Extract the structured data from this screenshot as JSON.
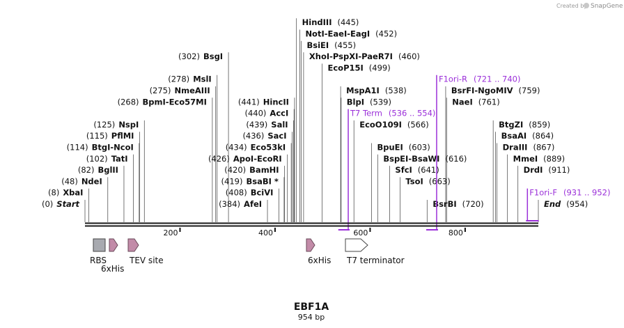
{
  "credit": {
    "prefix": "Created by",
    "brand": "SnapGene"
  },
  "plasmid": {
    "name": "EBF1A",
    "length_label": "954 bp",
    "length": 954
  },
  "ticks": [
    {
      "value": 200,
      "label": "200"
    },
    {
      "value": 400,
      "label": "400"
    },
    {
      "value": 600,
      "label": "600"
    },
    {
      "value": 800,
      "label": "800"
    }
  ],
  "sites": [
    {
      "row": 0,
      "site": 0,
      "parts": [
        {
          "t": "(0)",
          "k": "pos"
        },
        {
          "t": "Start",
          "k": "start"
        }
      ]
    },
    {
      "row": 1,
      "site": 8,
      "parts": [
        {
          "t": "(8)",
          "k": "pos"
        },
        {
          "t": "XbaI",
          "k": "enz"
        }
      ]
    },
    {
      "row": 2,
      "site": 48,
      "parts": [
        {
          "t": "(48)",
          "k": "pos"
        },
        {
          "t": "NdeI",
          "k": "enz"
        }
      ]
    },
    {
      "row": 3,
      "site": 82,
      "parts": [
        {
          "t": "(82)",
          "k": "pos"
        },
        {
          "t": "BglII",
          "k": "enz"
        }
      ]
    },
    {
      "row": 4,
      "site": 102,
      "parts": [
        {
          "t": "(102)",
          "k": "pos"
        },
        {
          "t": "TatI",
          "k": "enz"
        }
      ]
    },
    {
      "row": 5,
      "site": 114,
      "parts": [
        {
          "t": "(114)",
          "k": "pos"
        },
        {
          "t": "BtgI",
          "k": "enz"
        },
        {
          "t": " - ",
          "k": "sep"
        },
        {
          "t": "NcoI",
          "k": "enz"
        }
      ]
    },
    {
      "row": 6,
      "site": 115,
      "parts": [
        {
          "t": "(115)",
          "k": "pos"
        },
        {
          "t": "PflMI",
          "k": "enz"
        }
      ]
    },
    {
      "row": 7,
      "site": 125,
      "parts": [
        {
          "t": "(125)",
          "k": "pos"
        },
        {
          "t": "NspI",
          "k": "enz"
        }
      ]
    },
    {
      "row": 9,
      "site": 268,
      "parts": [
        {
          "t": "(268)",
          "k": "pos"
        },
        {
          "t": "BpmI",
          "k": "enz"
        },
        {
          "t": " - ",
          "k": "sep"
        },
        {
          "t": "Eco57MI",
          "k": "enz"
        }
      ]
    },
    {
      "row": 10,
      "site": 275,
      "parts": [
        {
          "t": "(275)",
          "k": "pos"
        },
        {
          "t": "NmeAIII",
          "k": "enz"
        }
      ]
    },
    {
      "row": 11,
      "site": 278,
      "parts": [
        {
          "t": "(278)",
          "k": "pos"
        },
        {
          "t": "MslI",
          "k": "enz"
        }
      ]
    },
    {
      "row": 13,
      "site": 302,
      "parts": [
        {
          "t": "(302)",
          "k": "pos"
        },
        {
          "t": "BsgI",
          "k": "enz"
        }
      ]
    },
    {
      "row": 0,
      "site": 384,
      "parts": [
        {
          "t": "(384)",
          "k": "pos"
        },
        {
          "t": "AfeI",
          "k": "enz"
        }
      ]
    },
    {
      "row": 1,
      "site": 408,
      "parts": [
        {
          "t": "(408)",
          "k": "pos"
        },
        {
          "t": "BciVI",
          "k": "enz"
        }
      ]
    },
    {
      "row": 2,
      "site": 419,
      "parts": [
        {
          "t": "(419)",
          "k": "pos"
        },
        {
          "t": "BsaBI *",
          "k": "enz"
        }
      ]
    },
    {
      "row": 3,
      "site": 420,
      "parts": [
        {
          "t": "(420)",
          "k": "pos"
        },
        {
          "t": "BamHI",
          "k": "enz"
        }
      ]
    },
    {
      "row": 4,
      "site": 426,
      "parts": [
        {
          "t": "(426)",
          "k": "pos"
        },
        {
          "t": "ApoI",
          "k": "enz"
        },
        {
          "t": " - ",
          "k": "sep"
        },
        {
          "t": "EcoRI",
          "k": "enz"
        }
      ]
    },
    {
      "row": 5,
      "site": 434,
      "parts": [
        {
          "t": "(434)",
          "k": "pos"
        },
        {
          "t": "Eco53kI",
          "k": "enz"
        }
      ]
    },
    {
      "row": 6,
      "site": 436,
      "parts": [
        {
          "t": "(436)",
          "k": "pos"
        },
        {
          "t": "SacI",
          "k": "enz"
        }
      ]
    },
    {
      "row": 7,
      "site": 439,
      "parts": [
        {
          "t": "(439)",
          "k": "pos"
        },
        {
          "t": "SalI",
          "k": "enz"
        }
      ]
    },
    {
      "row": 8,
      "site": 440,
      "parts": [
        {
          "t": "(440)",
          "k": "pos"
        },
        {
          "t": "AccI",
          "k": "enz"
        }
      ]
    },
    {
      "row": 9,
      "site": 441,
      "parts": [
        {
          "t": "(441)",
          "k": "pos"
        },
        {
          "t": "HincII",
          "k": "enz"
        }
      ]
    },
    {
      "row": 16,
      "site": 445,
      "parts": [
        {
          "t": "HindIII",
          "k": "enz"
        },
        {
          "t": "(445)",
          "k": "pos"
        }
      ]
    },
    {
      "row": 15,
      "site": 452,
      "parts": [
        {
          "t": "NotI",
          "k": "enz"
        },
        {
          "t": " - ",
          "k": "sep"
        },
        {
          "t": "EaeI",
          "k": "enz"
        },
        {
          "t": " - ",
          "k": "sep"
        },
        {
          "t": "EagI",
          "k": "enz"
        },
        {
          "t": "(452)",
          "k": "pos"
        }
      ]
    },
    {
      "row": 14,
      "site": 455,
      "parts": [
        {
          "t": "BsiEI",
          "k": "enz"
        },
        {
          "t": "(455)",
          "k": "pos"
        }
      ]
    },
    {
      "row": 13,
      "site": 460,
      "parts": [
        {
          "t": "XhoI",
          "k": "enz"
        },
        {
          "t": " - ",
          "k": "sep"
        },
        {
          "t": "PspXI",
          "k": "enz"
        },
        {
          "t": " - ",
          "k": "sep"
        },
        {
          "t": "PaeR7I",
          "k": "enz"
        },
        {
          "t": "(460)",
          "k": "pos"
        }
      ]
    },
    {
      "row": 12,
      "site": 499,
      "parts": [
        {
          "t": "EcoP15I",
          "k": "enz"
        },
        {
          "t": "(499)",
          "k": "pos"
        }
      ]
    },
    {
      "row": 10,
      "site": 538,
      "parts": [
        {
          "t": "MspA1I",
          "k": "enz"
        },
        {
          "t": "(538)",
          "k": "pos"
        }
      ]
    },
    {
      "row": 9,
      "site": 539,
      "parts": [
        {
          "t": "BlpI",
          "k": "enz"
        },
        {
          "t": "(539)",
          "k": "pos"
        }
      ]
    },
    {
      "row": 7,
      "site": 566,
      "parts": [
        {
          "t": "EcoO109I",
          "k": "enz"
        },
        {
          "t": "(566)",
          "k": "pos"
        }
      ]
    },
    {
      "row": 5,
      "site": 603,
      "parts": [
        {
          "t": "BpuEI",
          "k": "enz"
        },
        {
          "t": "(603)",
          "k": "pos"
        }
      ]
    },
    {
      "row": 4,
      "site": 616,
      "parts": [
        {
          "t": "BspEI",
          "k": "enz"
        },
        {
          "t": " - ",
          "k": "sep"
        },
        {
          "t": "BsaWI",
          "k": "enz"
        },
        {
          "t": "(616)",
          "k": "pos"
        }
      ]
    },
    {
      "row": 3,
      "site": 641,
      "parts": [
        {
          "t": "SfcI",
          "k": "enz"
        },
        {
          "t": "(641)",
          "k": "pos"
        }
      ]
    },
    {
      "row": 2,
      "site": 663,
      "parts": [
        {
          "t": "TsoI",
          "k": "enz"
        },
        {
          "t": "(663)",
          "k": "pos"
        }
      ]
    },
    {
      "row": 0,
      "site": 720,
      "parts": [
        {
          "t": "BsrBI",
          "k": "enz"
        },
        {
          "t": "(720)",
          "k": "pos"
        }
      ]
    },
    {
      "row": 10,
      "site": 759,
      "parts": [
        {
          "t": "BsrFI",
          "k": "enz"
        },
        {
          "t": " - ",
          "k": "sep"
        },
        {
          "t": "NgoMIV",
          "k": "enz"
        },
        {
          "t": "(759)",
          "k": "pos"
        }
      ]
    },
    {
      "row": 9,
      "site": 761,
      "parts": [
        {
          "t": "NaeI",
          "k": "enz"
        },
        {
          "t": "(761)",
          "k": "pos"
        }
      ]
    },
    {
      "row": 7,
      "site": 859,
      "parts": [
        {
          "t": "BtgZI",
          "k": "enz"
        },
        {
          "t": "(859)",
          "k": "pos"
        }
      ]
    },
    {
      "row": 6,
      "site": 864,
      "parts": [
        {
          "t": "BsaAI",
          "k": "enz"
        },
        {
          "t": "(864)",
          "k": "pos"
        }
      ]
    },
    {
      "row": 5,
      "site": 867,
      "parts": [
        {
          "t": "DraIII",
          "k": "enz"
        },
        {
          "t": "(867)",
          "k": "pos"
        }
      ]
    },
    {
      "row": 4,
      "site": 889,
      "parts": [
        {
          "t": "MmeI",
          "k": "enz"
        },
        {
          "t": "(889)",
          "k": "pos"
        }
      ]
    },
    {
      "row": 3,
      "site": 911,
      "parts": [
        {
          "t": "DrdI",
          "k": "enz"
        },
        {
          "t": "(911)",
          "k": "pos"
        }
      ]
    },
    {
      "row": 0,
      "site": 954,
      "parts": [
        {
          "t": "End",
          "k": "start"
        },
        {
          "t": "(954)",
          "k": "pos"
        }
      ]
    }
  ],
  "primers": [
    {
      "name": "T7 Term",
      "range": "(536 .. 554)",
      "start": 536,
      "end": 554,
      "row": 8,
      "strand": "reverse"
    },
    {
      "name": "F1ori-R",
      "range": "(721 .. 740)",
      "start": 721,
      "end": 740,
      "row": 11,
      "strand": "reverse"
    },
    {
      "name": "F1ori-F",
      "range": "(931 .. 952)",
      "start": 931,
      "end": 952,
      "row": 1,
      "strand": "forward"
    }
  ],
  "features": [
    {
      "name": "RBS",
      "kind": "box",
      "start": 20,
      "end": 42,
      "label_row": 0
    },
    {
      "name": "6xHis",
      "kind": "arrow",
      "start": 52,
      "end": 70,
      "label_row": 1
    },
    {
      "name": "TEV site",
      "kind": "arrow",
      "start": 92,
      "end": 114,
      "label_row": 0
    },
    {
      "name": "6xHis",
      "kind": "arrow",
      "start": 450,
      "end": 468,
      "label_row": 0
    },
    {
      "name": "T7 terminator",
      "kind": "arrow",
      "start": 554,
      "end": 602,
      "label_row": 0,
      "style": "open"
    }
  ],
  "colors": {
    "primer": "#9b30d9",
    "feature_fill": "#c28ba8",
    "feature_stroke": "#6a4a5a",
    "rbs_fill": "#a8aab0",
    "backbone": "#1a1a1a",
    "leader": "#555555"
  }
}
